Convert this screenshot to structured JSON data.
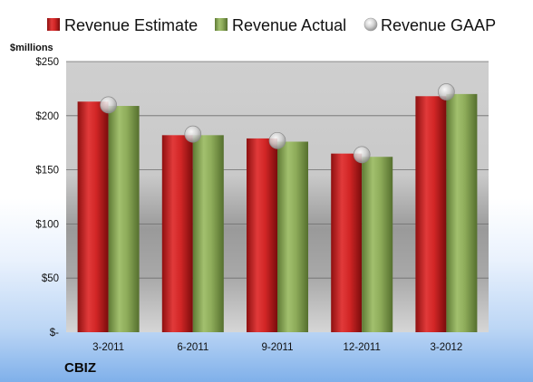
{
  "company": "CBIZ",
  "chart_data": {
    "type": "bar",
    "unit_label": "$millions",
    "categories": [
      "3-2011",
      "6-2011",
      "9-2011",
      "12-2011",
      "3-2012"
    ],
    "series": [
      {
        "name": "Revenue Estimate",
        "kind": "bar",
        "color": "#d42a2a",
        "values": [
          213,
          182,
          179,
          165,
          218
        ]
      },
      {
        "name": "Revenue Actual",
        "kind": "bar",
        "color": "#8fad5c",
        "values": [
          209,
          182,
          176,
          162,
          220
        ]
      },
      {
        "name": "Revenue GAAP",
        "kind": "marker",
        "color": "#c8c8c8",
        "values": [
          210,
          183,
          177,
          164,
          222
        ]
      }
    ],
    "ylim": [
      0,
      250
    ],
    "y_ticks": [
      0,
      50,
      100,
      150,
      200,
      250
    ],
    "y_tick_labels": [
      "$-",
      "$50",
      "$100",
      "$150",
      "$200",
      "$250"
    ],
    "grid": true,
    "legend_position": "top"
  }
}
